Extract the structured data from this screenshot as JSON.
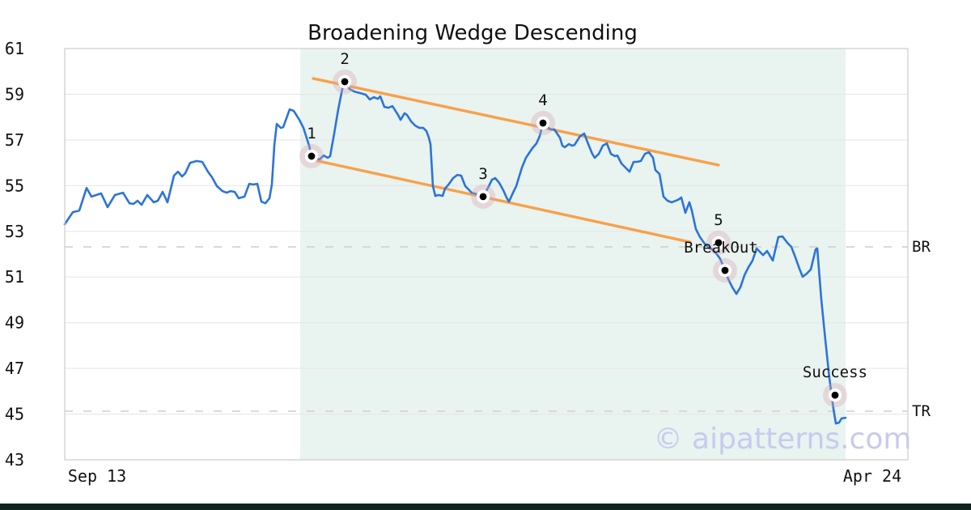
{
  "title": "Broadening Wedge Descending",
  "watermark": {
    "text": "© aipatterns.com",
    "color": "#c8caee"
  },
  "colors": {
    "grid": "#e7e7e7",
    "level": "#d4d4d4",
    "wedge": "#f7a14b",
    "spine": "#d0d0d0",
    "halo": "#d9a2b2",
    "footer_bar": "#0d241f",
    "text": "#111111",
    "region": "#e9f3ef"
  },
  "chart_data": {
    "type": "line",
    "title": "Broadening Wedge Descending",
    "xlabel": "",
    "ylabel": "",
    "grid": true,
    "x_axis": {
      "tick_labels": [
        "Sep 13",
        "Apr 24"
      ],
      "tick_pcts": [
        3.84,
        95.78
      ]
    },
    "y_axis": {
      "ticks": [
        61,
        59,
        57,
        55,
        53,
        51,
        49,
        47,
        45,
        43
      ],
      "ylim": [
        43,
        61
      ]
    },
    "shaded_region": {
      "from_pct": 27.93,
      "to_pct": 92.61,
      "color": "#e9f3ef"
    },
    "levels": [
      {
        "label": "BR",
        "value": 52.32
      },
      {
        "label": "TR",
        "value": 45.13
      }
    ],
    "wedge_lines": [
      {
        "name": "upper-resistance",
        "from": [
          29.46,
          59.69
        ],
        "to": [
          77.54,
          55.9
        ]
      },
      {
        "name": "lower-support",
        "from": [
          29.65,
          56.11
        ],
        "to": [
          74.18,
          52.53
        ]
      }
    ],
    "markers": [
      {
        "label": "1",
        "x_pct": 29.27,
        "value": 56.29
      },
      {
        "label": "2",
        "x_pct": 33.21,
        "value": 59.55
      },
      {
        "label": "3",
        "x_pct": 49.62,
        "value": 54.52
      },
      {
        "label": "4",
        "x_pct": 56.72,
        "value": 57.74
      },
      {
        "label": "5",
        "x_pct": 77.54,
        "value": 52.5
      },
      {
        "label": "BreakOut",
        "x_pct": 78.31,
        "value": 51.29,
        "label_dx": -5
      },
      {
        "label": "Success",
        "x_pct": 91.36,
        "value": 45.83
      }
    ],
    "series": [
      {
        "name": "price",
        "color": "#2b74d9",
        "points": [
          [
            0,
            53.31
          ],
          [
            0.96,
            53.84
          ],
          [
            1.73,
            53.91
          ],
          [
            2.59,
            54.9
          ],
          [
            3.17,
            54.52
          ],
          [
            4.32,
            54.66
          ],
          [
            5.09,
            54.06
          ],
          [
            5.95,
            54.59
          ],
          [
            6.91,
            54.69
          ],
          [
            7.68,
            54.23
          ],
          [
            8.16,
            54.2
          ],
          [
            8.64,
            54.34
          ],
          [
            9.12,
            54.16
          ],
          [
            9.79,
            54.59
          ],
          [
            10.56,
            54.27
          ],
          [
            11.04,
            54.34
          ],
          [
            11.61,
            54.73
          ],
          [
            12.19,
            54.27
          ],
          [
            12.96,
            55.44
          ],
          [
            13.44,
            55.61
          ],
          [
            13.92,
            55.4
          ],
          [
            14.3,
            55.54
          ],
          [
            14.88,
            56
          ],
          [
            15.64,
            56.08
          ],
          [
            16.31,
            56.04
          ],
          [
            16.99,
            55.61
          ],
          [
            17.47,
            55.37
          ],
          [
            18.04,
            54.98
          ],
          [
            18.71,
            54.76
          ],
          [
            19.19,
            54.69
          ],
          [
            19.67,
            54.76
          ],
          [
            20.15,
            54.73
          ],
          [
            20.63,
            54.45
          ],
          [
            21.31,
            54.52
          ],
          [
            21.88,
            55.08
          ],
          [
            22.36,
            55.05
          ],
          [
            22.84,
            55.08
          ],
          [
            23.32,
            54.3
          ],
          [
            23.8,
            54.23
          ],
          [
            24.28,
            54.45
          ],
          [
            24.57,
            55.05
          ],
          [
            24.86,
            56.75
          ],
          [
            25.14,
            57.7
          ],
          [
            25.62,
            57.53
          ],
          [
            25.91,
            57.56
          ],
          [
            26.68,
            58.34
          ],
          [
            27.16,
            58.27
          ],
          [
            27.83,
            57.88
          ],
          [
            28.31,
            57.53
          ],
          [
            28.98,
            56.75
          ],
          [
            29.27,
            56.29
          ],
          [
            29.75,
            56.18
          ],
          [
            30.23,
            56.15
          ],
          [
            30.71,
            56.32
          ],
          [
            31.19,
            56.22
          ],
          [
            31.48,
            56.29
          ],
          [
            31.96,
            57.28
          ],
          [
            32.44,
            58.34
          ],
          [
            32.92,
            59.23
          ],
          [
            33.21,
            59.55
          ],
          [
            33.78,
            59.23
          ],
          [
            34.36,
            59.12
          ],
          [
            35.03,
            59.05
          ],
          [
            35.7,
            58.98
          ],
          [
            36.18,
            58.77
          ],
          [
            36.66,
            58.87
          ],
          [
            37.14,
            58.8
          ],
          [
            37.43,
            58.91
          ],
          [
            37.91,
            58.45
          ],
          [
            38.39,
            58.41
          ],
          [
            38.87,
            58.48
          ],
          [
            39.54,
            58.09
          ],
          [
            39.83,
            57.88
          ],
          [
            40.31,
            58.17
          ],
          [
            40.6,
            58.09
          ],
          [
            41.08,
            57.81
          ],
          [
            41.56,
            57.63
          ],
          [
            42.03,
            57.53
          ],
          [
            42.51,
            57.53
          ],
          [
            42.9,
            57.39
          ],
          [
            43.19,
            57.1
          ],
          [
            43.38,
            56.82
          ],
          [
            43.67,
            54.98
          ],
          [
            43.95,
            54.55
          ],
          [
            44.34,
            54.59
          ],
          [
            44.82,
            54.55
          ],
          [
            45.11,
            54.87
          ],
          [
            45.59,
            55.08
          ],
          [
            46.07,
            55.33
          ],
          [
            46.55,
            55.47
          ],
          [
            47.02,
            55.44
          ],
          [
            47.5,
            54.98
          ],
          [
            47.98,
            54.8
          ],
          [
            48.27,
            54.69
          ],
          [
            48.94,
            54.62
          ],
          [
            49.62,
            54.52
          ],
          [
            50.19,
            54.9
          ],
          [
            50.67,
            55.26
          ],
          [
            51.06,
            55.33
          ],
          [
            51.54,
            55.12
          ],
          [
            52.02,
            54.8
          ],
          [
            52.4,
            54.48
          ],
          [
            52.69,
            54.3
          ],
          [
            53.17,
            54.69
          ],
          [
            53.55,
            54.98
          ],
          [
            54.22,
            55.79
          ],
          [
            54.7,
            56.22
          ],
          [
            55.47,
            56.64
          ],
          [
            55.95,
            56.85
          ],
          [
            56.33,
            57.17
          ],
          [
            56.72,
            57.74
          ],
          [
            57.2,
            57.6
          ],
          [
            57.58,
            57.46
          ],
          [
            58.06,
            57.46
          ],
          [
            58.73,
            57.1
          ],
          [
            59.02,
            56.75
          ],
          [
            59.31,
            56.68
          ],
          [
            59.79,
            56.82
          ],
          [
            60.17,
            56.75
          ],
          [
            60.46,
            56.78
          ],
          [
            61.13,
            57.17
          ],
          [
            61.61,
            57.28
          ],
          [
            62.09,
            56.82
          ],
          [
            62.57,
            56.39
          ],
          [
            62.86,
            56.22
          ],
          [
            63.34,
            56.39
          ],
          [
            63.82,
            56.75
          ],
          [
            64.3,
            56.85
          ],
          [
            64.78,
            56.39
          ],
          [
            65.26,
            56.29
          ],
          [
            65.55,
            56.32
          ],
          [
            66.03,
            55.97
          ],
          [
            66.51,
            55.79
          ],
          [
            66.99,
            55.61
          ],
          [
            67.47,
            56.04
          ],
          [
            67.85,
            56.04
          ],
          [
            68.33,
            56.08
          ],
          [
            68.81,
            56.39
          ],
          [
            69.29,
            56.46
          ],
          [
            69.77,
            56.22
          ],
          [
            70.06,
            55.68
          ],
          [
            70.54,
            55.51
          ],
          [
            71.02,
            54.52
          ],
          [
            71.5,
            54.34
          ],
          [
            71.98,
            54.27
          ],
          [
            72.74,
            54.38
          ],
          [
            73.13,
            54.48
          ],
          [
            73.61,
            53.81
          ],
          [
            74.09,
            54.27
          ],
          [
            74.38,
            53.91
          ],
          [
            74.86,
            53.1
          ],
          [
            75.34,
            52.75
          ],
          [
            75.82,
            52.5
          ],
          [
            76.3,
            52.32
          ],
          [
            76.78,
            52.21
          ],
          [
            77.26,
            52.04
          ],
          [
            77.74,
            51.79
          ],
          [
            78.31,
            51.29
          ],
          [
            78.7,
            50.9
          ],
          [
            79.18,
            50.55
          ],
          [
            79.66,
            50.26
          ],
          [
            80.13,
            50.55
          ],
          [
            80.61,
            51.08
          ],
          [
            81.09,
            51.43
          ],
          [
            81.57,
            51.72
          ],
          [
            82.05,
            52.25
          ],
          [
            82.82,
            51.96
          ],
          [
            83.3,
            52.14
          ],
          [
            83.97,
            51.72
          ],
          [
            84.64,
            52.75
          ],
          [
            85.12,
            52.78
          ],
          [
            85.7,
            52.5
          ],
          [
            86.18,
            52.32
          ],
          [
            86.66,
            51.86
          ],
          [
            87.14,
            51.36
          ],
          [
            87.52,
            51.01
          ],
          [
            88,
            51.15
          ],
          [
            88.48,
            51.33
          ],
          [
            89.06,
            52.21
          ],
          [
            89.25,
            52.25
          ],
          [
            89.73,
            50.02
          ],
          [
            90.21,
            48.24
          ],
          [
            90.69,
            46.58
          ],
          [
            91.17,
            45.23
          ],
          [
            91.46,
            44.59
          ],
          [
            91.84,
            44.63
          ],
          [
            92.13,
            44.81
          ],
          [
            92.61,
            44.84
          ]
        ]
      }
    ]
  }
}
